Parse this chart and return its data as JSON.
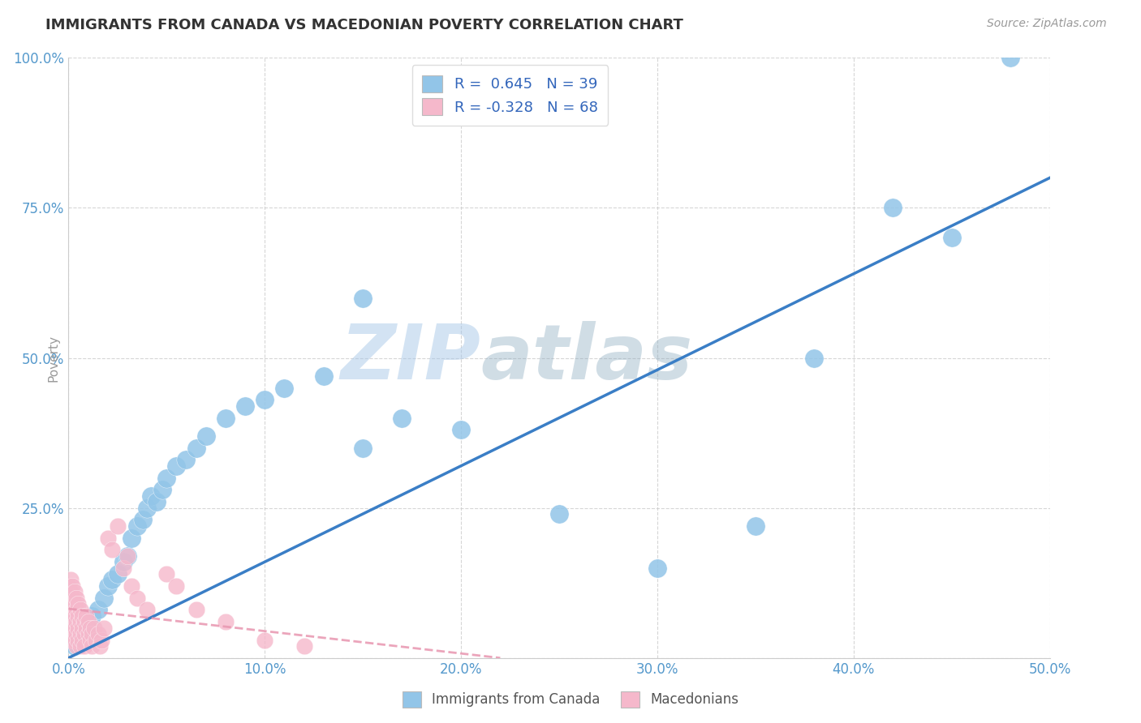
{
  "title": "IMMIGRANTS FROM CANADA VS MACEDONIAN POVERTY CORRELATION CHART",
  "source_text": "Source: ZipAtlas.com",
  "ylabel": "Poverty",
  "watermark_zip": "ZIP",
  "watermark_atlas": "atlas",
  "xlim": [
    0.0,
    0.5
  ],
  "ylim": [
    0.0,
    1.0
  ],
  "xticks": [
    0.0,
    0.1,
    0.2,
    0.3,
    0.4,
    0.5
  ],
  "xticklabels": [
    "0.0%",
    "10.0%",
    "20.0%",
    "30.0%",
    "40.0%",
    "50.0%"
  ],
  "yticks": [
    0.0,
    0.25,
    0.5,
    0.75,
    1.0
  ],
  "yticklabels": [
    "",
    "25.0%",
    "50.0%",
    "75.0%",
    "100.0%"
  ],
  "blue_r": " 0.645",
  "blue_n": "39",
  "pink_r": "-0.328",
  "pink_n": "68",
  "blue_color": "#92C5E8",
  "pink_color": "#F5B8CB",
  "trend_blue": "#3A7EC6",
  "trend_pink": "#E896B0",
  "blue_scatter": [
    [
      0.003,
      0.02
    ],
    [
      0.008,
      0.03
    ],
    [
      0.01,
      0.05
    ],
    [
      0.012,
      0.07
    ],
    [
      0.015,
      0.08
    ],
    [
      0.018,
      0.1
    ],
    [
      0.02,
      0.12
    ],
    [
      0.022,
      0.13
    ],
    [
      0.025,
      0.14
    ],
    [
      0.028,
      0.16
    ],
    [
      0.03,
      0.17
    ],
    [
      0.032,
      0.2
    ],
    [
      0.035,
      0.22
    ],
    [
      0.038,
      0.23
    ],
    [
      0.04,
      0.25
    ],
    [
      0.042,
      0.27
    ],
    [
      0.045,
      0.26
    ],
    [
      0.048,
      0.28
    ],
    [
      0.05,
      0.3
    ],
    [
      0.055,
      0.32
    ],
    [
      0.06,
      0.33
    ],
    [
      0.065,
      0.35
    ],
    [
      0.07,
      0.37
    ],
    [
      0.08,
      0.4
    ],
    [
      0.09,
      0.42
    ],
    [
      0.1,
      0.43
    ],
    [
      0.11,
      0.45
    ],
    [
      0.13,
      0.47
    ],
    [
      0.15,
      0.35
    ],
    [
      0.17,
      0.4
    ],
    [
      0.2,
      0.38
    ],
    [
      0.15,
      0.6
    ],
    [
      0.25,
      0.24
    ],
    [
      0.3,
      0.15
    ],
    [
      0.35,
      0.22
    ],
    [
      0.38,
      0.5
    ],
    [
      0.42,
      0.75
    ],
    [
      0.48,
      1.0
    ],
    [
      0.45,
      0.7
    ]
  ],
  "pink_scatter": [
    [
      0.0,
      0.08
    ],
    [
      0.0,
      0.1
    ],
    [
      0.0,
      0.12
    ],
    [
      0.0,
      0.05
    ],
    [
      0.001,
      0.07
    ],
    [
      0.001,
      0.09
    ],
    [
      0.001,
      0.11
    ],
    [
      0.001,
      0.06
    ],
    [
      0.001,
      0.04
    ],
    [
      0.001,
      0.13
    ],
    [
      0.002,
      0.08
    ],
    [
      0.002,
      0.06
    ],
    [
      0.002,
      0.1
    ],
    [
      0.002,
      0.04
    ],
    [
      0.002,
      0.12
    ],
    [
      0.002,
      0.03
    ],
    [
      0.003,
      0.07
    ],
    [
      0.003,
      0.05
    ],
    [
      0.003,
      0.09
    ],
    [
      0.003,
      0.11
    ],
    [
      0.003,
      0.03
    ],
    [
      0.004,
      0.06
    ],
    [
      0.004,
      0.08
    ],
    [
      0.004,
      0.04
    ],
    [
      0.004,
      0.1
    ],
    [
      0.004,
      0.02
    ],
    [
      0.005,
      0.05
    ],
    [
      0.005,
      0.07
    ],
    [
      0.005,
      0.09
    ],
    [
      0.005,
      0.03
    ],
    [
      0.006,
      0.06
    ],
    [
      0.006,
      0.04
    ],
    [
      0.006,
      0.08
    ],
    [
      0.006,
      0.02
    ],
    [
      0.007,
      0.05
    ],
    [
      0.007,
      0.07
    ],
    [
      0.007,
      0.03
    ],
    [
      0.008,
      0.06
    ],
    [
      0.008,
      0.04
    ],
    [
      0.008,
      0.02
    ],
    [
      0.009,
      0.05
    ],
    [
      0.009,
      0.07
    ],
    [
      0.01,
      0.04
    ],
    [
      0.01,
      0.06
    ],
    [
      0.011,
      0.03
    ],
    [
      0.011,
      0.05
    ],
    [
      0.012,
      0.04
    ],
    [
      0.012,
      0.02
    ],
    [
      0.013,
      0.05
    ],
    [
      0.014,
      0.03
    ],
    [
      0.015,
      0.04
    ],
    [
      0.016,
      0.02
    ],
    [
      0.017,
      0.03
    ],
    [
      0.018,
      0.05
    ],
    [
      0.02,
      0.2
    ],
    [
      0.022,
      0.18
    ],
    [
      0.025,
      0.22
    ],
    [
      0.028,
      0.15
    ],
    [
      0.03,
      0.17
    ],
    [
      0.032,
      0.12
    ],
    [
      0.035,
      0.1
    ],
    [
      0.04,
      0.08
    ],
    [
      0.05,
      0.14
    ],
    [
      0.055,
      0.12
    ],
    [
      0.065,
      0.08
    ],
    [
      0.08,
      0.06
    ],
    [
      0.1,
      0.03
    ],
    [
      0.12,
      0.02
    ]
  ],
  "background_color": "#FFFFFF",
  "grid_color": "#CCCCCC",
  "title_color": "#333333",
  "axis_label_color": "#999999",
  "tick_label_color": "#5599CC",
  "watermark_color": "#DDEEFF"
}
